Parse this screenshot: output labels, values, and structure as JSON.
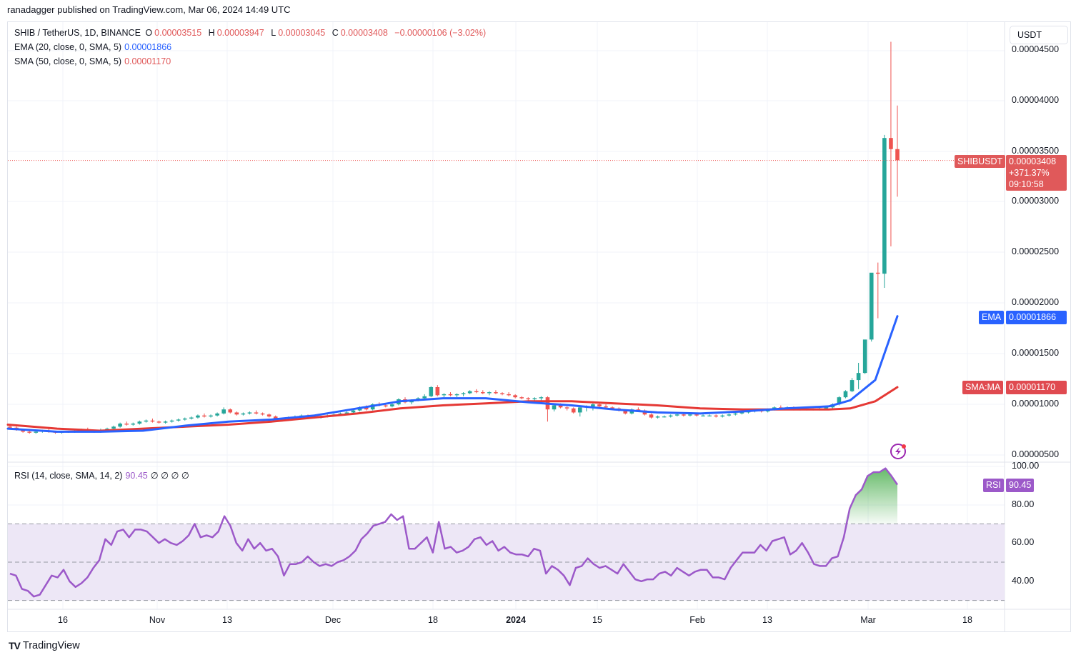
{
  "header": {
    "publisher_line": "ranadagger published on TradingView.com, Mar 06, 2024 14:49 UTC"
  },
  "legend": {
    "symbol": "SHIB / TetherUS, 1D, BINANCE",
    "open_label": "O",
    "open": "0.00003515",
    "high_label": "H",
    "high": "0.00003947",
    "low_label": "L",
    "low": "0.00003045",
    "close_label": "C",
    "close": "0.00003408",
    "change": "−0.00000106 (−3.02%)",
    "ema_label": "EMA (20, close, 0, SMA, 5)",
    "ema_value": "0.00001866",
    "sma_label": "SMA (50, close, 0, SMA, 5)",
    "sma_value": "0.00001170",
    "rsi_label": "RSI (14, close, SMA, 14, 2)",
    "rsi_value": "90.45",
    "rsi_extra": "∅ ∅ ∅ ∅"
  },
  "price_axis": {
    "currency": "USDT",
    "ticks": [
      "0.00004500",
      "0.00004000",
      "0.00003500",
      "0.00003000",
      "0.00002500",
      "0.00002000",
      "0.00001500",
      "0.00001000",
      "0.00000500"
    ]
  },
  "rsi_axis": {
    "ticks": [
      "100.00",
      "80.00",
      "60.00",
      "40.00"
    ]
  },
  "badges": {
    "symbol": "SHIBUSDT",
    "last_price": "0.00003408",
    "change_pct": "+371.37%",
    "countdown": "09:10:58",
    "ema_tag": "EMA",
    "ema_price": "0.00001866",
    "sma_tag": "SMA:MA",
    "sma_price": "0.00001170",
    "rsi_tag": "RSI",
    "rsi_val": "90.45"
  },
  "time_axis": {
    "ticks": [
      "16",
      "Nov",
      "13",
      "Dec",
      "18",
      "2024",
      "15",
      "Feb",
      "13",
      "Mar",
      "18"
    ]
  },
  "footer": {
    "brand": "TradingView",
    "logo": "TV"
  },
  "colors": {
    "up": "#26a69a",
    "down": "#ef5350",
    "ema": "#2962ff",
    "sma": "#e53935",
    "rsi": "#9c59c9",
    "rsi_band": "#ede7f6",
    "last_price_badge": "#e0595a",
    "grid": "#f0f3fa"
  },
  "chart_data": [
    {
      "type": "candlestick",
      "title": "SHIB / TetherUS, 1D, BINANCE",
      "ylabel": "USDT",
      "ylim": [
        4e-06,
        4.58e-05
      ],
      "x_ticks": [
        "16",
        "Nov",
        "13",
        "Dec",
        "18",
        "2024",
        "15",
        "Feb",
        "13",
        "Mar",
        "18"
      ],
      "last": {
        "open": 3.515e-05,
        "high": 3.947e-05,
        "low": 3.045e-05,
        "close": 3.408e-05,
        "change": -1.06e-06,
        "change_pct": -3.02
      },
      "ohlc_approx": [
        [
          7.8e-06,
          8e-06,
          7.6e-06,
          7.7e-06
        ],
        [
          7.7e-06,
          7.8e-06,
          7.4e-06,
          7.5e-06
        ],
        [
          7.5e-06,
          7.6e-06,
          7.2e-06,
          7.3e-06
        ],
        [
          7.3e-06,
          7.4e-06,
          7.1e-06,
          7.2e-06
        ],
        [
          7.2e-06,
          7.4e-06,
          7.1e-06,
          7.3e-06
        ],
        [
          7.3e-06,
          7.5e-06,
          7.2e-06,
          7.4e-06
        ],
        [
          7.4e-06,
          7.6e-06,
          7.2e-06,
          7.3e-06
        ],
        [
          7.3e-06,
          7.4e-06,
          7.1e-06,
          7.2e-06
        ],
        [
          7.2e-06,
          7.4e-06,
          7.1e-06,
          7.3e-06
        ],
        [
          7.3e-06,
          7.4e-06,
          7.2e-06,
          7.3e-06
        ],
        [
          7.3e-06,
          7.5e-06,
          7.2e-06,
          7.4e-06
        ],
        [
          7.4e-06,
          7.6e-06,
          7.3e-06,
          7.5e-06
        ],
        [
          7.5e-06,
          7.7e-06,
          7.3e-06,
          7.4e-06
        ],
        [
          7.4e-06,
          7.5e-06,
          7.2e-06,
          7.3e-06
        ],
        [
          7.3e-06,
          7.6e-06,
          7.2e-06,
          7.5e-06
        ],
        [
          7.5e-06,
          7.7e-06,
          7.4e-06,
          7.6e-06
        ],
        [
          7.6e-06,
          7.9e-06,
          7.5e-06,
          7.8e-06
        ],
        [
          7.8e-06,
          8.2e-06,
          7.7e-06,
          8.1e-06
        ],
        [
          8.1e-06,
          8.3e-06,
          7.9e-06,
          8e-06
        ],
        [
          8e-06,
          8.2e-06,
          7.9e-06,
          8.1e-06
        ],
        [
          8.1e-06,
          8.4e-06,
          8e-06,
          8.3e-06
        ],
        [
          8.3e-06,
          8.5e-06,
          8.2e-06,
          8.4e-06
        ],
        [
          8.4e-06,
          8.6e-06,
          8.2e-06,
          8.3e-06
        ],
        [
          8.3e-06,
          8.4e-06,
          8.1e-06,
          8.2e-06
        ],
        [
          8.2e-06,
          8.4e-06,
          8.1e-06,
          8.3e-06
        ],
        [
          8.3e-06,
          8.5e-06,
          8.2e-06,
          8.4e-06
        ],
        [
          8.4e-06,
          8.6e-06,
          8.3e-06,
          8.5e-06
        ],
        [
          8.5e-06,
          8.7e-06,
          8.4e-06,
          8.6e-06
        ],
        [
          8.6e-06,
          8.8e-06,
          8.5e-06,
          8.7e-06
        ],
        [
          8.7e-06,
          9e-06,
          8.6e-06,
          8.9e-06
        ],
        [
          8.9e-06,
          9.1e-06,
          8.7e-06,
          8.8e-06
        ],
        [
          8.8e-06,
          9e-06,
          8.7e-06,
          8.9e-06
        ],
        [
          8.9e-06,
          9.2e-06,
          8.8e-06,
          9.1e-06
        ],
        [
          9.1e-06,
          9.7e-06,
          9e-06,
          9.5e-06
        ],
        [
          9.5e-06,
          9.6e-06,
          9.1e-06,
          9.2e-06
        ],
        [
          9.2e-06,
          9.3e-06,
          8.9e-06,
          9e-06
        ],
        [
          9e-06,
          9.2e-06,
          8.9e-06,
          9.1e-06
        ],
        [
          9.1e-06,
          9.3e-06,
          9e-06,
          9.2e-06
        ],
        [
          9.2e-06,
          9.4e-06,
          9e-06,
          9.1e-06
        ],
        [
          9.1e-06,
          9.2e-06,
          8.9e-06,
          9e-06
        ],
        [
          9e-06,
          9.1e-06,
          8.7e-06,
          8.8e-06
        ],
        [
          8.8e-06,
          8.9e-06,
          8.4e-06,
          8.5e-06
        ],
        [
          8.5e-06,
          8.7e-06,
          8.3e-06,
          8.6e-06
        ],
        [
          8.6e-06,
          8.8e-06,
          8.5e-06,
          8.7e-06
        ],
        [
          8.7e-06,
          8.9e-06,
          8.6e-06,
          8.8e-06
        ],
        [
          8.8e-06,
          9e-06,
          8.7e-06,
          8.9e-06
        ],
        [
          8.9e-06,
          9e-06,
          8.7e-06,
          8.8e-06
        ],
        [
          8.8e-06,
          8.9e-06,
          8.6e-06,
          8.7e-06
        ],
        [
          8.7e-06,
          8.9e-06,
          8.6e-06,
          8.8e-06
        ],
        [
          8.8e-06,
          9e-06,
          8.7e-06,
          8.9e-06
        ],
        [
          8.9e-06,
          9.1e-06,
          8.8e-06,
          9e-06
        ],
        [
          9e-06,
          9.2e-06,
          8.9e-06,
          9.1e-06
        ],
        [
          9.1e-06,
          9.3e-06,
          9e-06,
          9.2e-06
        ],
        [
          9.2e-06,
          9.5e-06,
          9.1e-06,
          9.4e-06
        ],
        [
          9.4e-06,
          9.8e-06,
          9.3e-06,
          9.7e-06
        ],
        [
          9.7e-06,
          9.9e-06,
          9.4e-06,
          9.5e-06
        ],
        [
          9.5e-06,
          1.01e-05,
          9.4e-06,
          1e-05
        ],
        [
          1e-05,
          1.02e-05,
          9.8e-06,
          9.9e-06
        ],
        [
          9.9e-06,
          1.01e-05,
          9.7e-06,
          9.8e-06
        ],
        [
          9.8e-06,
          1.01e-05,
          9.7e-06,
          1e-05
        ],
        [
          1e-05,
          1.06e-05,
          9.9e-06,
          1.05e-05
        ],
        [
          1.05e-05,
          1.07e-05,
          1.01e-05,
          1.02e-05
        ],
        [
          1.02e-05,
          1.05e-05,
          1e-05,
          1.04e-05
        ],
        [
          1.04e-05,
          1.07e-05,
          1.03e-05,
          1.06e-05
        ],
        [
          1.06e-05,
          1.1e-05,
          1.04e-05,
          1.08e-05
        ],
        [
          1.08e-05,
          1.18e-05,
          1.07e-05,
          1.17e-05
        ],
        [
          1.17e-05,
          1.19e-05,
          1.08e-05,
          1.09e-05
        ],
        [
          1.09e-05,
          1.11e-05,
          1.07e-05,
          1.1e-05
        ],
        [
          1.1e-05,
          1.12e-05,
          1.08e-05,
          1.09e-05
        ],
        [
          1.09e-05,
          1.11e-05,
          1.07e-05,
          1.1e-05
        ],
        [
          1.1e-05,
          1.12e-05,
          1.08e-05,
          1.11e-05
        ],
        [
          1.11e-05,
          1.14e-05,
          1.1e-05,
          1.13e-05
        ],
        [
          1.13e-05,
          1.15e-05,
          1.11e-05,
          1.12e-05
        ],
        [
          1.12e-05,
          1.14e-05,
          1.1e-05,
          1.11e-05
        ],
        [
          1.11e-05,
          1.13e-05,
          1.09e-05,
          1.12e-05
        ],
        [
          1.12e-05,
          1.14e-05,
          1.1e-05,
          1.11e-05
        ],
        [
          1.11e-05,
          1.12e-05,
          1.09e-05,
          1.1e-05
        ],
        [
          1.1e-05,
          1.12e-05,
          1.08e-05,
          1.09e-05
        ],
        [
          1.09e-05,
          1.1e-05,
          1.06e-05,
          1.07e-05
        ],
        [
          1.07e-05,
          1.08e-05,
          1.05e-05,
          1.06e-05
        ],
        [
          1.06e-05,
          1.07e-05,
          1.04e-05,
          1.05e-05
        ],
        [
          1.05e-05,
          1.07e-05,
          1.03e-05,
          1.06e-05
        ],
        [
          1.06e-05,
          1.08e-05,
          1.04e-05,
          1.07e-05
        ],
        [
          1.07e-05,
          1.08e-05,
          8.3e-06,
          9.5e-06
        ],
        [
          9.5e-06,
          1e-05,
          9.3e-06,
          9.9e-06
        ],
        [
          9.9e-06,
          1.01e-05,
          9.6e-06,
          9.7e-06
        ],
        [
          9.7e-06,
          9.8e-06,
          9.4e-06,
          9.6e-06
        ],
        [
          9.6e-06,
          9.7e-06,
          9.1e-06,
          9.2e-06
        ],
        [
          9.2e-06,
          9.9e-06,
          8.8e-06,
          9.7e-06
        ],
        [
          9.7e-06,
          9.9e-06,
          9.3e-06,
          9.8e-06
        ],
        [
          9.8e-06,
          1.03e-05,
          9.4e-06,
          1e-05
        ],
        [
          1e-05,
          1.01e-05,
          9.7e-06,
          9.8e-06
        ],
        [
          9.8e-06,
          1e-05,
          9.6e-06,
          9.7e-06
        ],
        [
          9.7e-06,
          9.8e-06,
          9.5e-06,
          9.6e-06
        ],
        [
          9.6e-06,
          9.7e-06,
          9.3e-06,
          9.4e-06
        ],
        [
          9.4e-06,
          9.5e-06,
          9e-06,
          9.1e-06
        ],
        [
          9.1e-06,
          9.6e-06,
          9e-06,
          9.5e-06
        ],
        [
          9.5e-06,
          9.7e-06,
          9.3e-06,
          9.4e-06
        ],
        [
          9.4e-06,
          9.5e-06,
          8.9e-06,
          9e-06
        ],
        [
          9e-06,
          9.1e-06,
          8.6e-06,
          8.7e-06
        ],
        [
          8.7e-06,
          8.9e-06,
          8.6e-06,
          8.8e-06
        ],
        [
          8.8e-06,
          8.9e-06,
          8.7e-06,
          8.8e-06
        ],
        [
          8.8e-06,
          9e-06,
          8.7e-06,
          8.9e-06
        ],
        [
          8.9e-06,
          9.1e-06,
          8.8e-06,
          9e-06
        ],
        [
          9e-06,
          9.1e-06,
          8.8e-06,
          8.9e-06
        ],
        [
          8.9e-06,
          9.1e-06,
          8.8e-06,
          9e-06
        ],
        [
          9e-06,
          9.1e-06,
          8.8e-06,
          8.9e-06
        ],
        [
          8.9e-06,
          9e-06,
          8.8e-06,
          8.9e-06
        ],
        [
          8.9e-06,
          9e-06,
          8.8e-06,
          8.9e-06
        ],
        [
          8.9e-06,
          9e-06,
          8.7e-06,
          8.8e-06
        ],
        [
          8.8e-06,
          9e-06,
          8.7e-06,
          8.9e-06
        ],
        [
          8.9e-06,
          9.1e-06,
          8.8e-06,
          9e-06
        ],
        [
          9e-06,
          9.2e-06,
          8.9e-06,
          9.1e-06
        ],
        [
          9.1e-06,
          9.3e-06,
          9e-06,
          9.2e-06
        ],
        [
          9.2e-06,
          9.4e-06,
          9.1e-06,
          9.3e-06
        ],
        [
          9.3e-06,
          9.5e-06,
          9.2e-06,
          9.4e-06
        ],
        [
          9.4e-06,
          9.5e-06,
          9.2e-06,
          9.3e-06
        ],
        [
          9.3e-06,
          9.6e-06,
          9.2e-06,
          9.5e-06
        ],
        [
          9.5e-06,
          9.8e-06,
          9.4e-06,
          9.7e-06
        ],
        [
          9.7e-06,
          9.9e-06,
          9.5e-06,
          9.6e-06
        ],
        [
          9.6e-06,
          9.8e-06,
          9.5e-06,
          9.7e-06
        ],
        [
          9.7e-06,
          9.8e-06,
          9.4e-06,
          9.5e-06
        ],
        [
          9.5e-06,
          9.7e-06,
          9.4e-06,
          9.6e-06
        ],
        [
          9.6e-06,
          9.7e-06,
          9.4e-06,
          9.5e-06
        ],
        [
          9.5e-06,
          9.6e-06,
          9.4e-06,
          9.5e-06
        ],
        [
          9.5e-06,
          9.7e-06,
          9.4e-06,
          9.6e-06
        ],
        [
          9.6e-06,
          9.8e-06,
          9.5e-06,
          9.7e-06
        ],
        [
          9.7e-06,
          1.01e-05,
          9.6e-06,
          1e-05
        ],
        [
          1e-05,
          1.08e-05,
          9.9e-06,
          1.07e-05
        ],
        [
          1.07e-05,
          1.14e-05,
          1.06e-05,
          1.13e-05
        ],
        [
          1.13e-05,
          1.26e-05,
          1.12e-05,
          1.24e-05
        ],
        [
          1.24e-05,
          1.41e-05,
          1.15e-05,
          1.31e-05
        ],
        [
          1.31e-05,
          1.62e-05,
          1.3e-05,
          1.64e-05
        ],
        [
          1.64e-05,
          1.76e-05,
          1.62e-05,
          2.3e-05
        ],
        [
          2.3e-05,
          2.4e-05,
          1.85e-05,
          2.29e-05
        ],
        [
          2.29e-05,
          3.66e-05,
          2.15e-05,
          3.63e-05
        ],
        [
          3.63e-05,
          4.58e-05,
          2.56e-05,
          3.52e-05
        ],
        [
          3.52e-05,
          3.95e-05,
          3.05e-05,
          3.41e-05
        ]
      ],
      "ema20_approx": [
        7.6e-06,
        7.3e-06,
        7.3e-06,
        7.4e-06,
        7.9e-06,
        8.3e-06,
        8.5e-06,
        8.9e-06,
        9.6e-06,
        1.03e-05,
        1.06e-05,
        1.06e-05,
        1.02e-05,
        9.9e-06,
        9.5e-06,
        9.2e-06,
        9.1e-06,
        9.3e-06,
        9.6e-06,
        9.8e-06,
        1.04e-05,
        1.24e-05,
        1.87e-05
      ],
      "sma50_approx": [
        8e-06,
        7.6e-06,
        7.4e-06,
        7.6e-06,
        7.8e-06,
        8e-06,
        8.3e-06,
        8.7e-06,
        9.1e-06,
        9.6e-06,
        9.9e-06,
        1.01e-05,
        1.03e-05,
        1.03e-05,
        1.01e-05,
        9.9e-06,
        9.6e-06,
        9.5e-06,
        9.5e-06,
        9.5e-06,
        9.6e-06,
        1.03e-05,
        1.17e-05
      ]
    },
    {
      "type": "line",
      "title": "RSI (14, close, SMA, 14, 2)",
      "ylim": [
        25,
        100
      ],
      "bands": {
        "upper": 70,
        "middle": 50,
        "lower": 30
      },
      "last_value": 90.45,
      "values": [
        44,
        43,
        36,
        35,
        32,
        33,
        38,
        43,
        42,
        46,
        40,
        37,
        39,
        42,
        47,
        51,
        62,
        59,
        66,
        67,
        63,
        67,
        67,
        66,
        63,
        60,
        62,
        60,
        59,
        61,
        64,
        70,
        63,
        64,
        63,
        66,
        74,
        69,
        60,
        56,
        62,
        57,
        60,
        56,
        57,
        53,
        43,
        49,
        49,
        50,
        53,
        50,
        48,
        49,
        48,
        50,
        51,
        53,
        56,
        62,
        65,
        69,
        70,
        71,
        75,
        72,
        74,
        57,
        57,
        60,
        63,
        55,
        71,
        57,
        58,
        55,
        56,
        58,
        62,
        63,
        59,
        61,
        56,
        58,
        55,
        54,
        54,
        53,
        57,
        56,
        44,
        48,
        46,
        43,
        38,
        47,
        48,
        52,
        49,
        47,
        48,
        46,
        44,
        49,
        45,
        41,
        40,
        41,
        41,
        44,
        45,
        43,
        47,
        45,
        43,
        45,
        46,
        46,
        42,
        42,
        41,
        47,
        51,
        55,
        55,
        55,
        59,
        56,
        61,
        62,
        63,
        54,
        56,
        60,
        55,
        49,
        48,
        48,
        52,
        53,
        63,
        78,
        85,
        88,
        95,
        97,
        97,
        99,
        95,
        90.45
      ]
    }
  ]
}
